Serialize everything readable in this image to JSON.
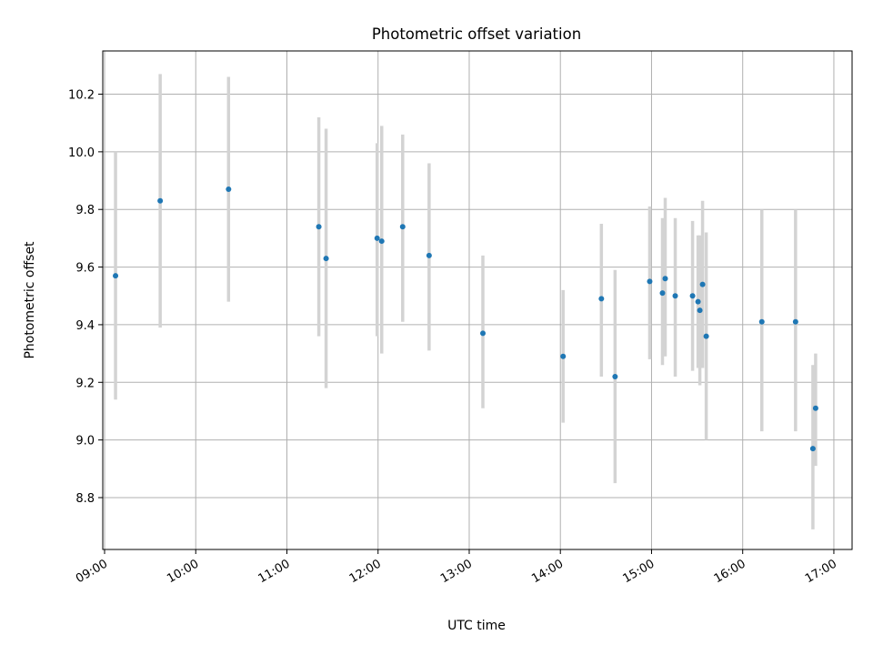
{
  "chart_data": {
    "type": "scatter",
    "title": "Photometric offset variation",
    "xlabel": "UTC time",
    "ylabel": "Photometric offset",
    "x_unit": "hours UTC",
    "xlim": [
      8.98,
      17.2
    ],
    "ylim": [
      8.62,
      10.35
    ],
    "x_ticks": [
      9,
      10,
      11,
      12,
      13,
      14,
      15,
      16,
      17
    ],
    "x_tick_labels": [
      "09:00",
      "10:00",
      "11:00",
      "12:00",
      "13:00",
      "14:00",
      "15:00",
      "16:00",
      "17:00"
    ],
    "y_ticks": [
      8.8,
      9.0,
      9.2,
      9.4,
      9.6,
      9.8,
      10.0,
      10.2
    ],
    "y_tick_labels": [
      "8.8",
      "9.0",
      "9.2",
      "9.4",
      "9.6",
      "9.8",
      "10.0",
      "10.2"
    ],
    "grid": true,
    "colors": {
      "point": "#1f77b4",
      "errorbar": "#d3d3d3",
      "grid": "#b0b0b0"
    },
    "series": [
      {
        "points": [
          {
            "x": 9.12,
            "y": 9.57,
            "lo": 9.14,
            "hi": 10.0
          },
          {
            "x": 9.61,
            "y": 9.83,
            "lo": 9.39,
            "hi": 10.27
          },
          {
            "x": 10.36,
            "y": 9.87,
            "lo": 9.48,
            "hi": 10.26
          },
          {
            "x": 11.35,
            "y": 9.74,
            "lo": 9.36,
            "hi": 10.12
          },
          {
            "x": 11.43,
            "y": 9.63,
            "lo": 9.18,
            "hi": 10.08
          },
          {
            "x": 11.99,
            "y": 9.7,
            "lo": 9.36,
            "hi": 10.03
          },
          {
            "x": 12.04,
            "y": 9.69,
            "lo": 9.3,
            "hi": 10.09
          },
          {
            "x": 12.27,
            "y": 9.74,
            "lo": 9.41,
            "hi": 10.06
          },
          {
            "x": 12.56,
            "y": 9.64,
            "lo": 9.31,
            "hi": 9.96
          },
          {
            "x": 13.15,
            "y": 9.37,
            "lo": 9.11,
            "hi": 9.64
          },
          {
            "x": 14.03,
            "y": 9.29,
            "lo": 9.06,
            "hi": 9.52
          },
          {
            "x": 14.45,
            "y": 9.49,
            "lo": 9.22,
            "hi": 9.75
          },
          {
            "x": 14.6,
            "y": 9.22,
            "lo": 8.85,
            "hi": 9.59
          },
          {
            "x": 14.98,
            "y": 9.55,
            "lo": 9.28,
            "hi": 9.81
          },
          {
            "x": 15.12,
            "y": 9.51,
            "lo": 9.26,
            "hi": 9.77
          },
          {
            "x": 15.15,
            "y": 9.56,
            "lo": 9.29,
            "hi": 9.84
          },
          {
            "x": 15.26,
            "y": 9.5,
            "lo": 9.22,
            "hi": 9.77
          },
          {
            "x": 15.45,
            "y": 9.5,
            "lo": 9.24,
            "hi": 9.76
          },
          {
            "x": 15.51,
            "y": 9.48,
            "lo": 9.25,
            "hi": 9.71
          },
          {
            "x": 15.53,
            "y": 9.45,
            "lo": 9.19,
            "hi": 9.71
          },
          {
            "x": 15.56,
            "y": 9.54,
            "lo": 9.25,
            "hi": 9.83
          },
          {
            "x": 15.6,
            "y": 9.36,
            "lo": 9.0,
            "hi": 9.72
          },
          {
            "x": 16.21,
            "y": 9.41,
            "lo": 9.03,
            "hi": 9.8
          },
          {
            "x": 16.58,
            "y": 9.41,
            "lo": 9.03,
            "hi": 9.8
          },
          {
            "x": 16.77,
            "y": 8.97,
            "lo": 8.69,
            "hi": 9.26
          },
          {
            "x": 16.8,
            "y": 9.11,
            "lo": 8.91,
            "hi": 9.3
          }
        ]
      }
    ]
  }
}
